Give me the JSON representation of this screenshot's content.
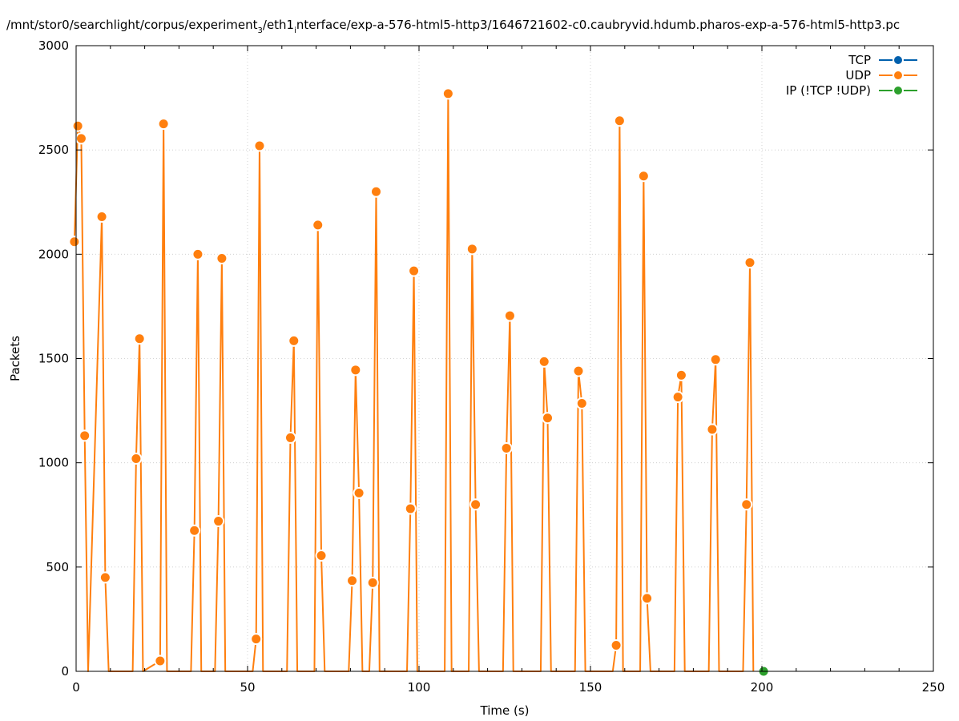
{
  "chart_data": {
    "type": "line",
    "title": "/mnt/stor0/searchlight/corpus/experiment_3/eth1_interface/exp-a-576-html5-http3/1646721602-c0.caubryvid.hdumb.pharos-exp-a-576-html5-http3.pcap",
    "title_parts": {
      "p1": "/mnt/stor0/searchlight/corpus/experiment",
      "sub1": "3",
      "p2": "/eth1",
      "sub2": "i",
      "p3": "nterface/exp-a-576-html5-http3/1646721602-c0.caubryvid.hdumb.pharos-exp-a-576-html5-http3.pc"
    },
    "xlabel": "Time (s)",
    "ylabel": "Packets",
    "xlim": [
      0,
      250
    ],
    "ylim": [
      0,
      3000
    ],
    "xticks": [
      "0",
      "50",
      "100",
      "150",
      "200",
      "250"
    ],
    "yticks": [
      "0",
      "500",
      "1000",
      "1500",
      "2000",
      "2500",
      "3000"
    ],
    "grid": true,
    "legend_position": "top-right",
    "series": [
      {
        "name": "TCP",
        "color": "#0060ad",
        "x": [],
        "y": []
      },
      {
        "name": "UDP",
        "color": "#ff7f0e",
        "x": [
          -0.5,
          0.5,
          1.5,
          2.5,
          3.5,
          7.5,
          8.5,
          9.5,
          16.5,
          17.5,
          18.5,
          19.5,
          24.5,
          25.5,
          26.5,
          33.5,
          34.5,
          35.5,
          36.5,
          40.5,
          41.5,
          42.5,
          43.5,
          51.5,
          52.5,
          53.5,
          54.5,
          61.5,
          62.5,
          63.5,
          64.5,
          69.5,
          70.5,
          71.5,
          72.5,
          79.5,
          80.5,
          81.5,
          82.5,
          83.5,
          85.5,
          86.5,
          87.5,
          88.5,
          96.5,
          97.5,
          98.5,
          99.5,
          107.5,
          108.5,
          109.5,
          114.5,
          115.5,
          116.5,
          117.5,
          124.5,
          125.5,
          126.5,
          127.5,
          135.5,
          136.5,
          137.5,
          138.5,
          145.5,
          146.5,
          147.5,
          148.5,
          156.5,
          157.5,
          158.5,
          159.5,
          164.5,
          165.5,
          166.5,
          167.5,
          174.5,
          175.5,
          176.5,
          177.5,
          184.5,
          185.5,
          186.5,
          187.5,
          194.5,
          195.5,
          196.5,
          197.5
        ],
        "y": [
          2060,
          2615,
          2555,
          1130,
          0,
          2180,
          450,
          0,
          0,
          1020,
          1595,
          0,
          50,
          2625,
          0,
          0,
          675,
          2000,
          0,
          0,
          720,
          1980,
          0,
          0,
          155,
          2520,
          0,
          0,
          1120,
          1585,
          0,
          0,
          2140,
          555,
          0,
          0,
          435,
          1445,
          855,
          0,
          0,
          425,
          2300,
          0,
          0,
          780,
          1920,
          0,
          0,
          2770,
          0,
          0,
          2025,
          800,
          0,
          0,
          1070,
          1705,
          0,
          0,
          1485,
          1215,
          0,
          0,
          1440,
          1285,
          0,
          0,
          125,
          2640,
          0,
          0,
          2375,
          350,
          0,
          0,
          1315,
          1420,
          0,
          0,
          1160,
          1495,
          0,
          0,
          800,
          1960,
          0
        ],
        "marker_x": [
          -0.5,
          0.5,
          1.5,
          2.5,
          7.5,
          8.5,
          17.5,
          18.5,
          24.5,
          25.5,
          34.5,
          35.5,
          41.5,
          42.5,
          52.5,
          53.5,
          62.5,
          63.5,
          70.5,
          71.5,
          80.5,
          81.5,
          82.5,
          86.5,
          87.5,
          97.5,
          98.5,
          108.5,
          115.5,
          116.5,
          125.5,
          126.5,
          136.5,
          137.5,
          146.5,
          147.5,
          157.5,
          158.5,
          165.5,
          166.5,
          175.5,
          176.5,
          185.5,
          186.5,
          195.5,
          196.5
        ],
        "marker_y": [
          2060,
          2615,
          2555,
          1130,
          2180,
          450,
          1020,
          1595,
          50,
          2625,
          675,
          2000,
          720,
          1980,
          155,
          2520,
          1120,
          1585,
          2140,
          555,
          435,
          1445,
          855,
          425,
          2300,
          780,
          1920,
          2770,
          2025,
          800,
          1070,
          1705,
          1485,
          1215,
          1440,
          1285,
          125,
          2640,
          2375,
          350,
          1315,
          1420,
          1160,
          1495,
          800,
          1960
        ]
      },
      {
        "name": "IP (!TCP  !UDP)",
        "color": "#2ca02c",
        "x": [
          200.5
        ],
        "y": [
          0
        ]
      }
    ]
  }
}
